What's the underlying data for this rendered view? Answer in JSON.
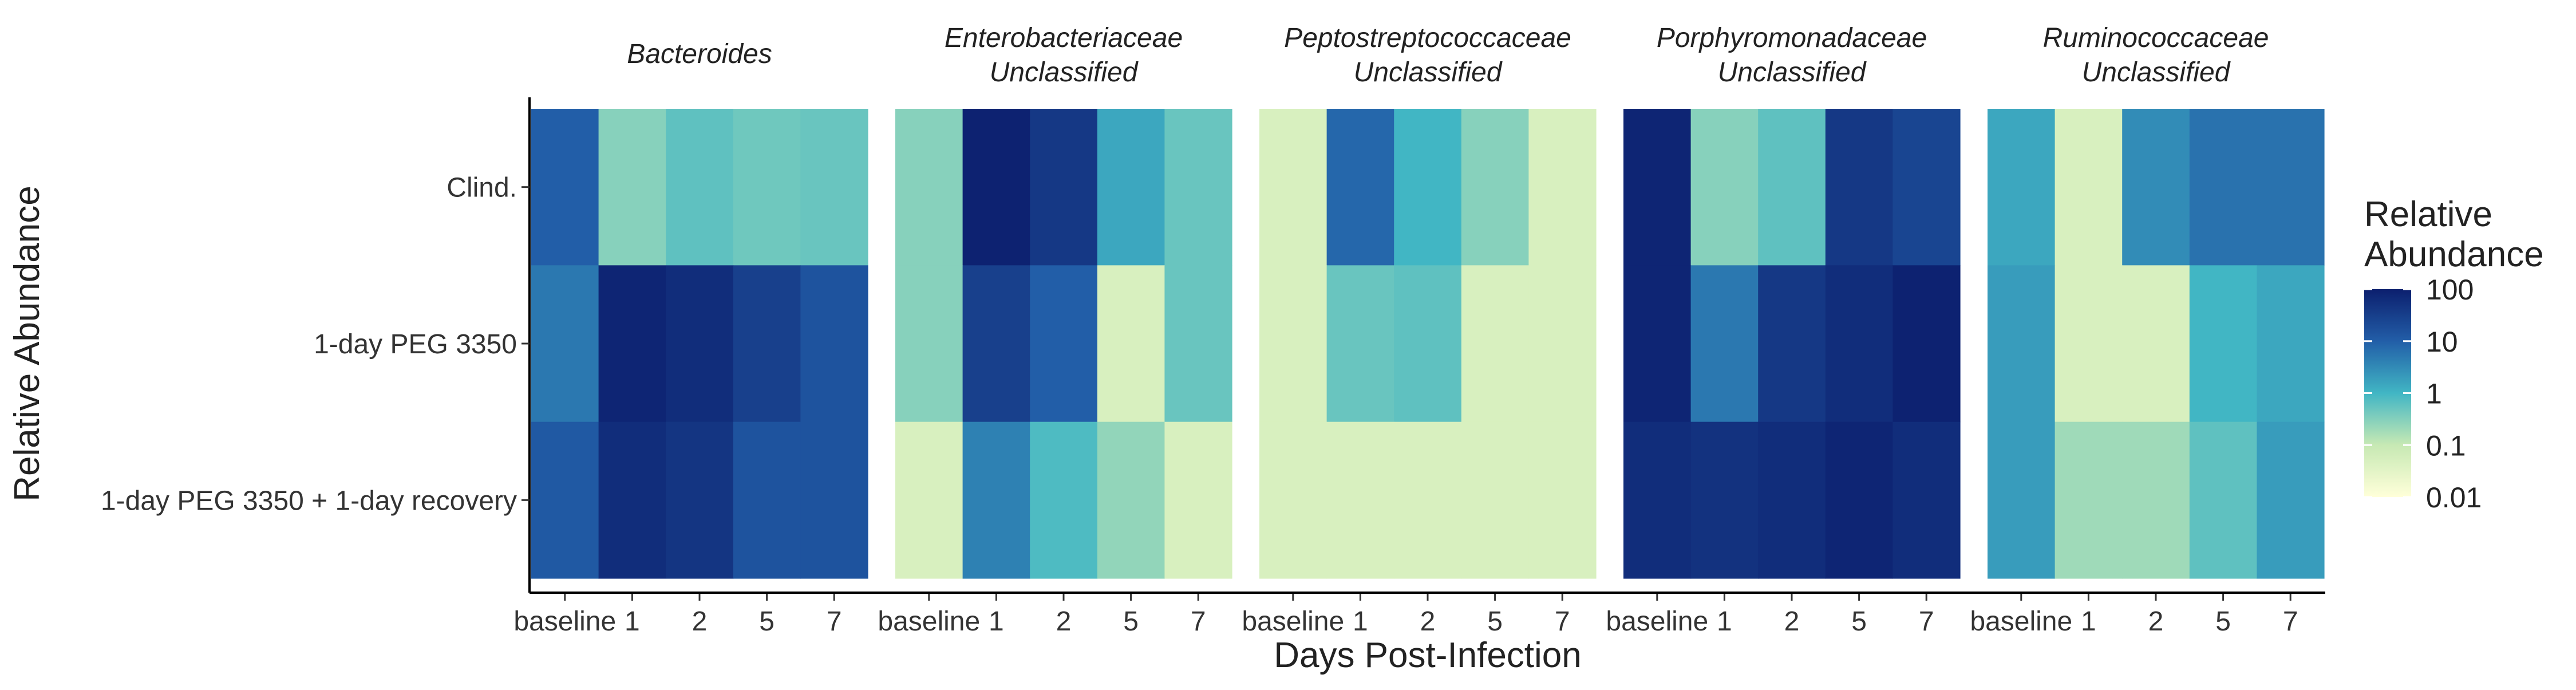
{
  "chart_data": {
    "type": "heatmap",
    "xlabel": "Days Post-Infection",
    "ylabel": "Relative Abundance",
    "x_categories": [
      "baseline",
      "1",
      "2",
      "5",
      "7"
    ],
    "y_categories": [
      "Clind.",
      "1-day PEG 3350",
      "1-day PEG 3350 + 1-day recovery"
    ],
    "color_scale": {
      "type": "log",
      "domain": [
        0.01,
        100
      ],
      "stops": [
        {
          "value": 0.01,
          "color": "#ffffd9"
        },
        {
          "value": 0.1,
          "color": "#c7e9b4"
        },
        {
          "value": 1,
          "color": "#41b6c4"
        },
        {
          "value": 10,
          "color": "#225ea8"
        },
        {
          "value": 100,
          "color": "#0c1f6e"
        }
      ]
    },
    "legend": {
      "title_lines": [
        "Relative",
        "Abundance"
      ],
      "ticks": [
        {
          "value": 100,
          "label": "100"
        },
        {
          "value": 10,
          "label": "10"
        },
        {
          "value": 1,
          "label": "1"
        },
        {
          "value": 0.1,
          "label": "0.1"
        },
        {
          "value": 0.01,
          "label": "0.01"
        }
      ],
      "placement": "right"
    },
    "facets": [
      {
        "title_lines": [
          "Bacteroides"
        ],
        "values": [
          [
            10,
            0.3,
            0.6,
            0.45,
            0.5
          ],
          [
            5,
            80,
            60,
            30,
            15
          ],
          [
            12,
            60,
            45,
            15,
            15
          ]
        ]
      },
      {
        "title_lines": [
          "Enterobacteriaceae",
          "Unclassified"
        ],
        "values": [
          [
            0.3,
            90,
            40,
            1.5,
            0.5
          ],
          [
            0.3,
            30,
            10,
            0.05,
            0.5
          ],
          [
            0.05,
            4,
            0.8,
            0.25,
            0.05
          ]
        ]
      },
      {
        "title_lines": [
          "Peptostreptococcaceae",
          "Unclassified"
        ],
        "values": [
          [
            0.05,
            8,
            1,
            0.3,
            0.05
          ],
          [
            0.05,
            0.5,
            0.6,
            0.05,
            0.05
          ],
          [
            0.05,
            0.05,
            0.05,
            0.05,
            0.05
          ]
        ]
      },
      {
        "title_lines": [
          "Porphyromonadaceae",
          "Unclassified"
        ],
        "values": [
          [
            80,
            0.3,
            0.6,
            40,
            25
          ],
          [
            80,
            5,
            40,
            60,
            90
          ],
          [
            60,
            50,
            60,
            80,
            60
          ]
        ]
      },
      {
        "title_lines": [
          "Ruminococcaceae",
          "Unclassified"
        ],
        "values": [
          [
            1.5,
            0.05,
            3,
            6,
            6
          ],
          [
            2,
            0.05,
            0.05,
            1,
            1.5
          ],
          [
            2,
            0.2,
            0.2,
            0.6,
            2
          ]
        ]
      }
    ],
    "grid": false
  }
}
